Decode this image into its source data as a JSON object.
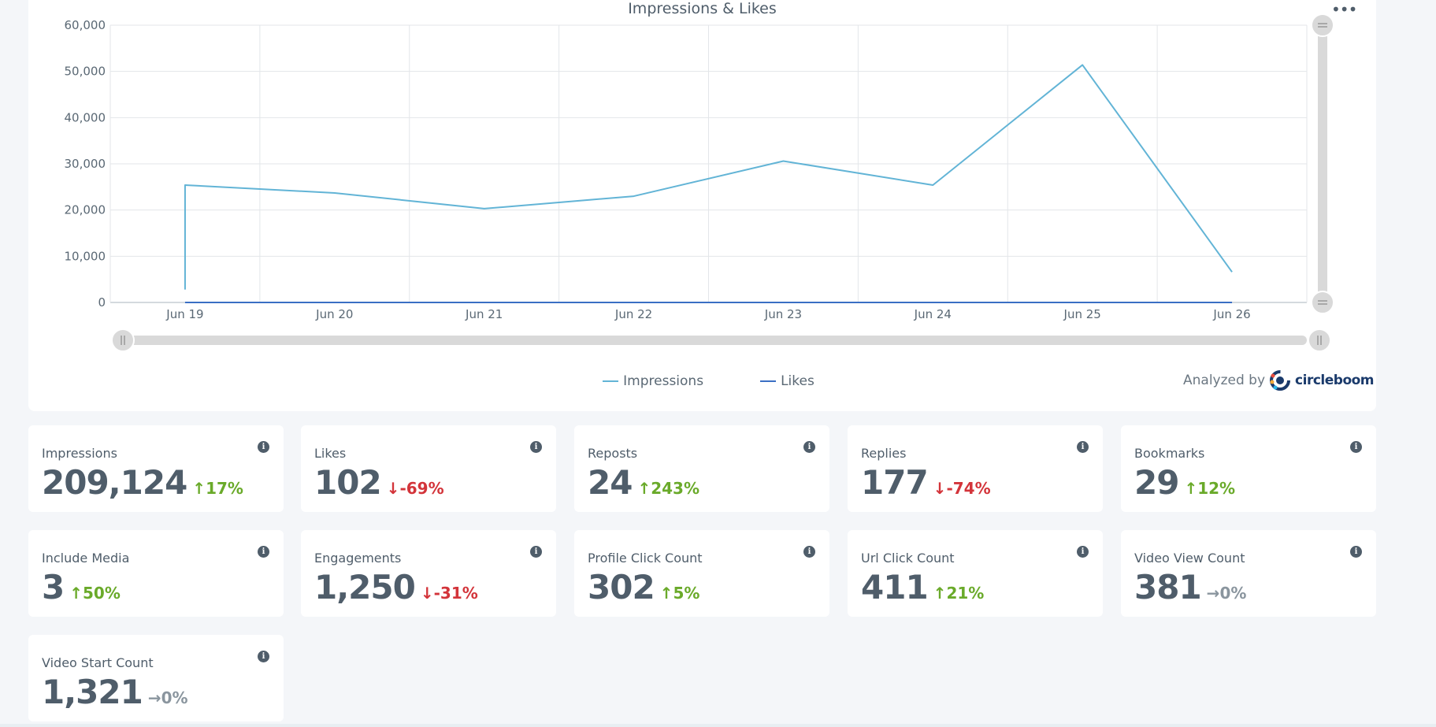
{
  "chart_data": {
    "type": "line",
    "title": "Impressions & Likes",
    "categories": [
      "Jun 19",
      "Jun 20",
      "Jun 21",
      "Jun 22",
      "Jun 23",
      "Jun 24",
      "Jun 25",
      "Jun 26"
    ],
    "series": [
      {
        "name": "Impressions",
        "color": "#62b4d6",
        "start_value": 2800,
        "values": [
          25400,
          23700,
          20300,
          23000,
          30600,
          25400,
          51400,
          6600
        ]
      },
      {
        "name": "Likes",
        "color": "#3a6fc4",
        "values": [
          0,
          0,
          0,
          0,
          0,
          0,
          0,
          0
        ]
      }
    ],
    "y_ticks": [
      "0",
      "10,000",
      "20,000",
      "30,000",
      "40,000",
      "50,000",
      "60,000"
    ],
    "ylim": [
      0,
      60000
    ],
    "grid": true,
    "legend_position": "bottom-center"
  },
  "chart": {
    "menu_icon": "more-dots-icon",
    "analyzed_by": "Analyzed by",
    "brand_name": "circleboom"
  },
  "stats": [
    {
      "label": "Impressions",
      "value": "209,124",
      "change": "17%",
      "trend": "up"
    },
    {
      "label": "Likes",
      "value": "102",
      "change": "-69%",
      "trend": "down"
    },
    {
      "label": "Reposts",
      "value": "24",
      "change": "243%",
      "trend": "up"
    },
    {
      "label": "Replies",
      "value": "177",
      "change": "-74%",
      "trend": "down"
    },
    {
      "label": "Bookmarks",
      "value": "29",
      "change": "12%",
      "trend": "up"
    },
    {
      "label": "Include Media",
      "value": "3",
      "change": "50%",
      "trend": "up"
    },
    {
      "label": "Engagements",
      "value": "1,250",
      "change": "-31%",
      "trend": "down"
    },
    {
      "label": "Profile Click Count",
      "value": "302",
      "change": "5%",
      "trend": "up"
    },
    {
      "label": "Url Click Count",
      "value": "411",
      "change": "21%",
      "trend": "up"
    },
    {
      "label": "Video View Count",
      "value": "381",
      "change": "0%",
      "trend": "flat"
    },
    {
      "label": "Video Start Count",
      "value": "1,321",
      "change": "0%",
      "trend": "flat"
    }
  ],
  "colors": {
    "up": "#6aaa2a",
    "down": "#d3343a",
    "flat": "#8a959e"
  }
}
